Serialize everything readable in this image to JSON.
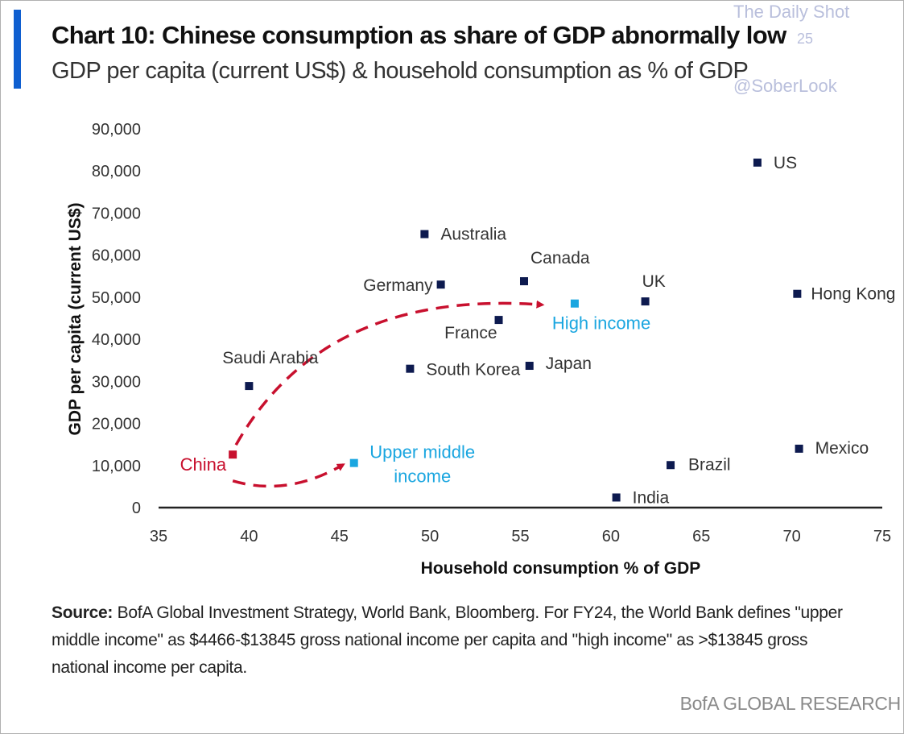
{
  "header": {
    "title": "Chart 10: Chinese consumption as share of GDP abnormally low",
    "subtitle": "GDP per capita (current US$) & household consumption as % of GDP"
  },
  "watermark": {
    "name": "The Daily Shot",
    "date": "25",
    "handle": "@SoberLook"
  },
  "chart_data": {
    "type": "scatter",
    "xlabel": "Household consumption % of GDP",
    "ylabel": "GDP per capita (current US$)",
    "xlim": [
      35,
      75
    ],
    "ylim": [
      0,
      90000
    ],
    "x_ticks": [
      35,
      40,
      45,
      50,
      55,
      60,
      65,
      70,
      75
    ],
    "y_ticks": [
      0,
      10000,
      20000,
      30000,
      40000,
      50000,
      60000,
      70000,
      80000,
      90000
    ],
    "y_tick_labels": [
      "0",
      "10,000",
      "20,000",
      "30,000",
      "40,000",
      "50,000",
      "60,000",
      "70,000",
      "80,000",
      "90,000"
    ],
    "grid": false,
    "series": [
      {
        "name": "",
        "color": "#0d1a4f",
        "points": [
          {
            "label": "US",
            "x": 68.1,
            "y": 82000
          },
          {
            "label": "Australia",
            "x": 49.7,
            "y": 65000
          },
          {
            "label": "Canada",
            "x": 55.2,
            "y": 53800
          },
          {
            "label": "Germany",
            "x": 50.6,
            "y": 53000
          },
          {
            "label": "UK",
            "x": 61.9,
            "y": 49000
          },
          {
            "label": "Hong Kong",
            "x": 70.3,
            "y": 50800
          },
          {
            "label": "France",
            "x": 53.8,
            "y": 44600
          },
          {
            "label": "South Korea",
            "x": 48.9,
            "y": 33000
          },
          {
            "label": "Japan",
            "x": 55.5,
            "y": 33700
          },
          {
            "label": "Saudi Arabia",
            "x": 40.0,
            "y": 28900
          },
          {
            "label": "Mexico",
            "x": 70.4,
            "y": 14000
          },
          {
            "label": "Brazil",
            "x": 63.3,
            "y": 10100
          },
          {
            "label": "India",
            "x": 60.3,
            "y": 2400
          }
        ]
      },
      {
        "name": "",
        "color": "#1aa6e0",
        "points": [
          {
            "label": "High income",
            "x": 58.0,
            "y": 48500
          },
          {
            "label": "Upper middle\nincome",
            "x": 45.8,
            "y": 10600
          }
        ]
      },
      {
        "name": "",
        "color": "#c8102e",
        "points": [
          {
            "label": "China",
            "x": 39.1,
            "y": 12600
          }
        ]
      }
    ],
    "annotations": [
      {
        "type": "arrow",
        "color": "#c8102e",
        "from": [
          39.1,
          12600
        ],
        "to": [
          56.2,
          48200
        ],
        "style": "dashed"
      },
      {
        "type": "arrow",
        "color": "#c8102e",
        "from": [
          39.1,
          7500
        ],
        "to": [
          45.2,
          10200
        ],
        "style": "dashed"
      }
    ]
  },
  "source": {
    "label": "Source:",
    "text": " BofA Global Investment Strategy, World Bank, Bloomberg. For FY24, the World Bank defines \"upper middle income\" as $4466-$13845 gross national income per capita and \"high income\" as >$13845 gross national income per capita."
  },
  "brand": "BofA GLOBAL RESEARCH"
}
